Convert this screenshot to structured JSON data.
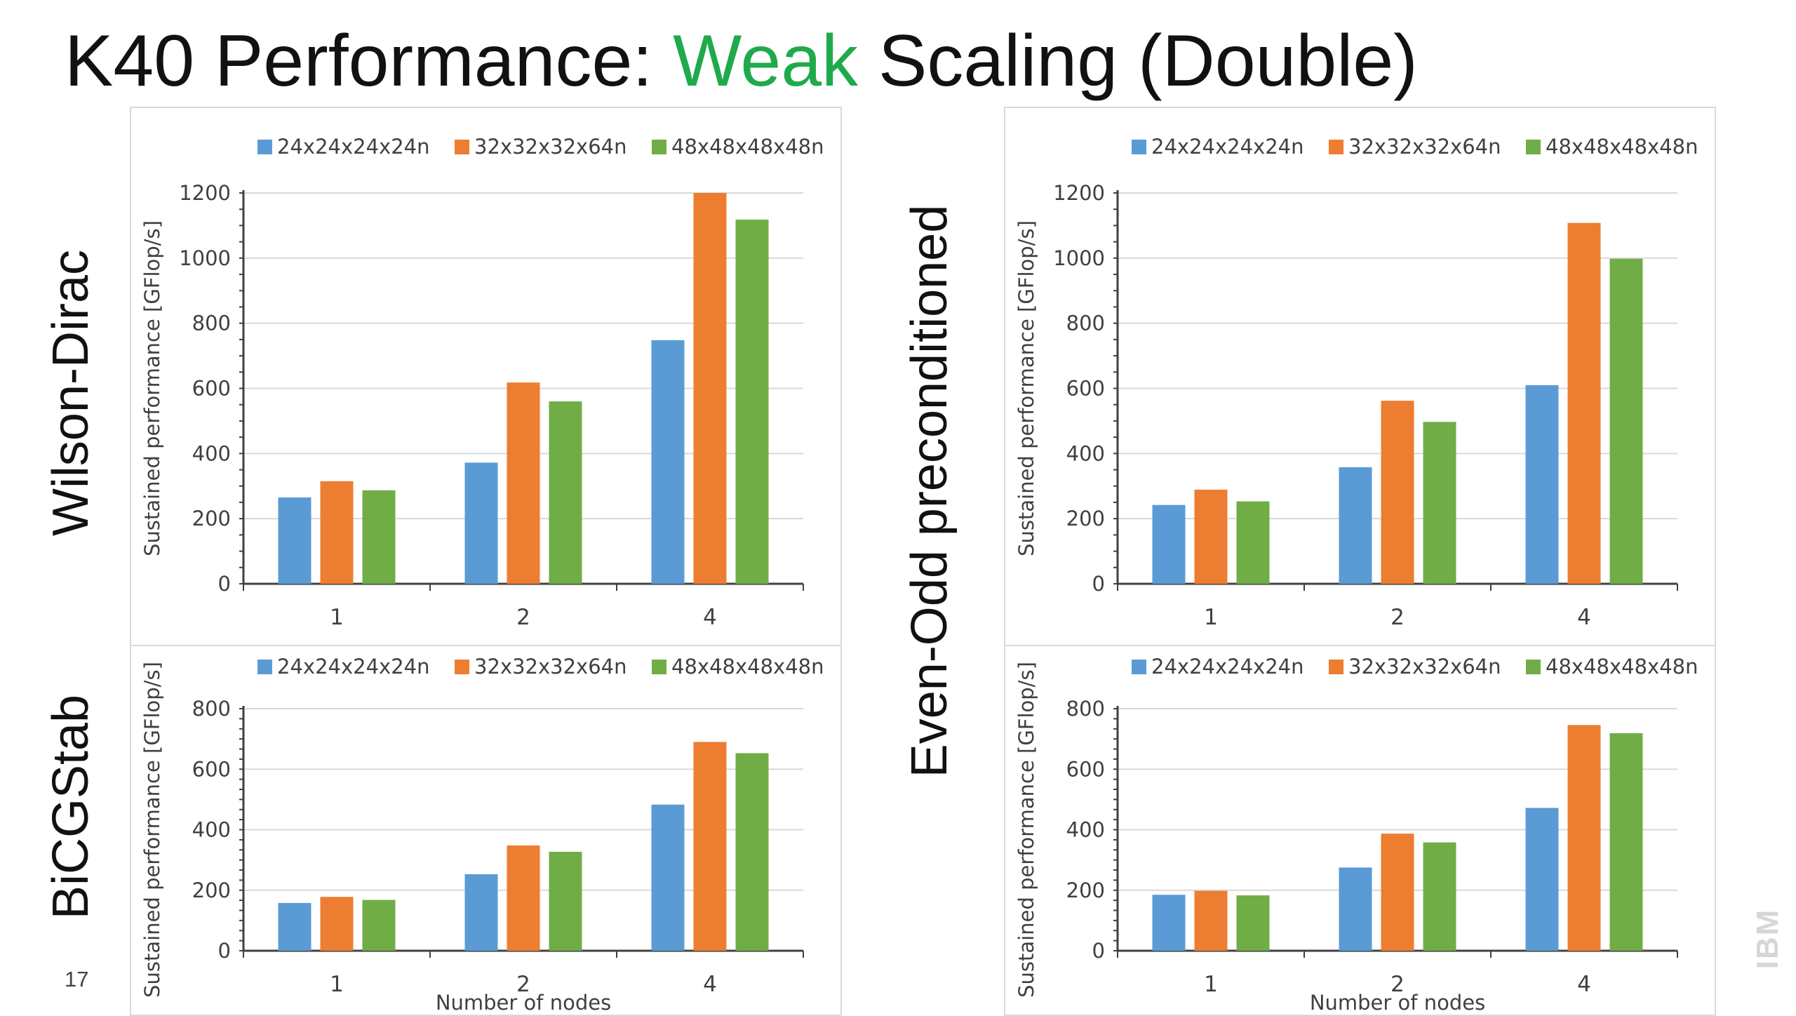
{
  "slide": {
    "title_pre": "K40 Performance: ",
    "title_accent": "Weak",
    "title_post": " Scaling (Double)",
    "page_number": "17",
    "logo_text": "IBM",
    "row_labels": {
      "top_left": "Wilson-Dirac",
      "top_right": "Even-Odd preconditioned",
      "bottom_left": "BiCGStab"
    }
  },
  "colors": {
    "series": [
      "#5b9bd5",
      "#ed7d31",
      "#70ad47"
    ],
    "accent": "#1faa4b"
  },
  "chart_data": [
    {
      "type": "bar",
      "categories": [
        "1",
        "2",
        "4"
      ],
      "series": [
        {
          "name": "24x24x24x24n",
          "values": [
            265,
            372,
            748
          ]
        },
        {
          "name": "32x32x32x64n",
          "values": [
            315,
            618,
            1200
          ]
        },
        {
          "name": "48x48x48x48n",
          "values": [
            287,
            560,
            1118
          ]
        }
      ],
      "xlabel": "",
      "ylabel": "Sustained performance [GFlop/s]",
      "ylim": [
        0,
        1200
      ],
      "yticks": [
        0,
        200,
        400,
        600,
        800,
        1000,
        1200
      ],
      "legend": "top"
    },
    {
      "type": "bar",
      "categories": [
        "1",
        "2",
        "4"
      ],
      "series": [
        {
          "name": "24x24x24x24n",
          "values": [
            242,
            358,
            610
          ]
        },
        {
          "name": "32x32x32x64n",
          "values": [
            289,
            562,
            1108
          ]
        },
        {
          "name": "48x48x48x48n",
          "values": [
            253,
            497,
            998
          ]
        }
      ],
      "xlabel": "",
      "ylabel": "Sustained performance [GFlop/s]",
      "ylim": [
        0,
        1200
      ],
      "yticks": [
        0,
        200,
        400,
        600,
        800,
        1000,
        1200
      ],
      "legend": "top"
    },
    {
      "type": "bar",
      "categories": [
        "1",
        "2",
        "4"
      ],
      "series": [
        {
          "name": "24x24x24x24n",
          "values": [
            158,
            253,
            483
          ]
        },
        {
          "name": "32x32x32x64n",
          "values": [
            178,
            348,
            690
          ]
        },
        {
          "name": "48x48x48x48n",
          "values": [
            168,
            327,
            653
          ]
        }
      ],
      "xlabel": "Number of nodes",
      "ylabel": "Sustained performance [GFlop/s]",
      "ylim": [
        0,
        800
      ],
      "yticks": [
        0,
        200,
        400,
        600,
        800
      ],
      "legend": "top"
    },
    {
      "type": "bar",
      "categories": [
        "1",
        "2",
        "4"
      ],
      "series": [
        {
          "name": "24x24x24x24n",
          "values": [
            185,
            275,
            472
          ]
        },
        {
          "name": "32x32x32x64n",
          "values": [
            198,
            387,
            746
          ]
        },
        {
          "name": "48x48x48x48n",
          "values": [
            183,
            358,
            719
          ]
        }
      ],
      "xlabel": "Number of nodes",
      "ylabel": "Sustained performance [GFlop/s]",
      "ylim": [
        0,
        800
      ],
      "yticks": [
        0,
        200,
        400,
        600,
        800
      ],
      "legend": "top"
    }
  ]
}
